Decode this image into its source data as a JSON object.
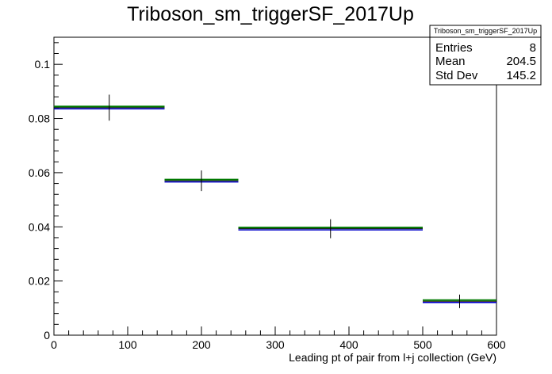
{
  "chart_data": {
    "type": "histogram",
    "title": "Triboson_sm_triggerSF_2017Up",
    "xlabel": "Leading pt of pair from l+j collection (GeV)",
    "ylabel": "",
    "xlim": [
      0,
      600
    ],
    "ylim": [
      0,
      0.11
    ],
    "x_ticks": [
      0,
      100,
      200,
      300,
      400,
      500,
      600
    ],
    "y_ticks": [
      0,
      0.02,
      0.04,
      0.06,
      0.08,
      0.1
    ],
    "grid": false,
    "bins": [
      {
        "low": 0,
        "high": 150,
        "center": 75,
        "value": 0.084,
        "error": 0.0048
      },
      {
        "low": 150,
        "high": 250,
        "center": 200,
        "value": 0.057,
        "error": 0.0038
      },
      {
        "low": 250,
        "high": 500,
        "center": 375,
        "value": 0.0393,
        "error": 0.0035
      },
      {
        "low": 500,
        "high": 600,
        "center": 550,
        "value": 0.0125,
        "error": 0.0025
      }
    ],
    "series_colors": {
      "nominal": "#000000",
      "variation": "#007a00",
      "shifted": "#0000cc"
    },
    "stats_box": {
      "title": "Triboson_sm_triggerSF_2017Up",
      "rows": [
        {
          "label": "Entries",
          "value": "8"
        },
        {
          "label": "Mean",
          "value": "204.5"
        },
        {
          "label": "Std Dev",
          "value": "145.2"
        }
      ]
    }
  }
}
